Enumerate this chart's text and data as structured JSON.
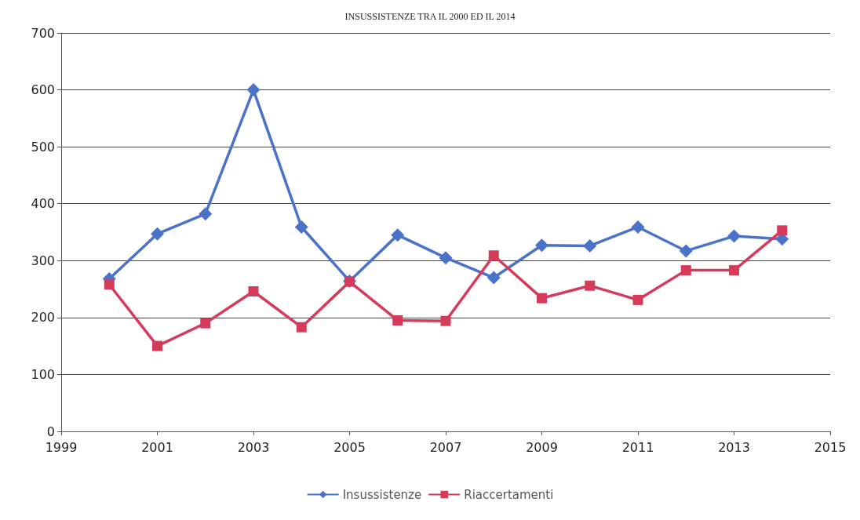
{
  "chart_data": {
    "type": "line",
    "title": "INSUSSISTENZE TRA IL 2000 ED IL 2014",
    "x": [
      2000,
      2001,
      2002,
      2003,
      2004,
      2005,
      2006,
      2007,
      2008,
      2009,
      2010,
      2011,
      2012,
      2013,
      2014
    ],
    "series": [
      {
        "name": "Insussistenze",
        "color": "#4a72c8",
        "marker": "diamond",
        "values": [
          268,
          347,
          382,
          600,
          359,
          264,
          345,
          305,
          270,
          327,
          326,
          359,
          317,
          343,
          338
        ]
      },
      {
        "name": "Riaccertamenti",
        "color": "#d63a5a",
        "marker": "square",
        "values": [
          258,
          150,
          190,
          246,
          183,
          263,
          195,
          194,
          309,
          234,
          256,
          231,
          283,
          283,
          353
        ]
      }
    ],
    "xlim": [
      1999,
      2015
    ],
    "xticks": [
      1999,
      2001,
      2003,
      2005,
      2007,
      2009,
      2011,
      2013,
      2015
    ],
    "ylim": [
      0,
      700
    ],
    "yticks": [
      0,
      100,
      200,
      300,
      400,
      500,
      600,
      700
    ],
    "grid": "y",
    "legend": "bottom"
  }
}
